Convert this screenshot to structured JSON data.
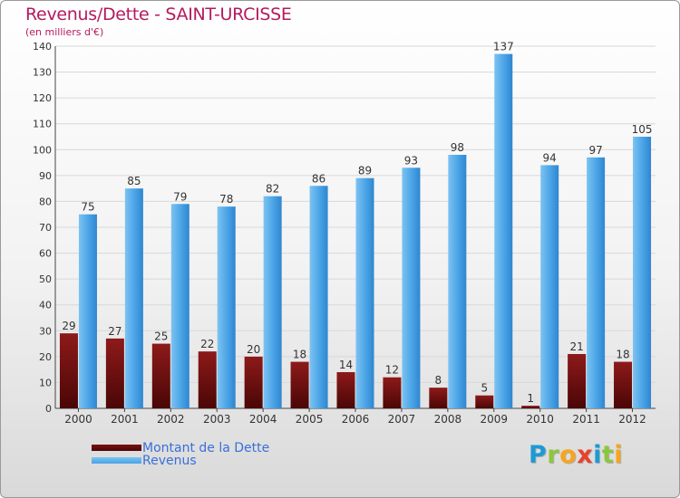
{
  "header": {
    "title": "Revenus/Dette - SAINT-URCISSE",
    "subtitle": "(en milliers d'€)"
  },
  "legend": {
    "items": [
      {
        "label": "Montant de la Dette",
        "color": "#7a0f0f"
      },
      {
        "label": "Revenus",
        "color": "#4aa3e6"
      }
    ]
  },
  "logo": {
    "letters": [
      "P",
      "r",
      "o",
      "x",
      "i",
      "t",
      "i"
    ],
    "colors": [
      "#1c9ad6",
      "#8cc63f",
      "#f7a51c",
      "#e8412c",
      "#1c9ad6",
      "#8cc63f",
      "#f7a51c"
    ]
  },
  "colors": {
    "title": "#b5195e",
    "debt": "#7a0f0f",
    "revenue": "#4aa3e6",
    "grid": "#d8d8d8"
  },
  "chart_data": {
    "type": "bar",
    "title": "Revenus/Dette - SAINT-URCISSE",
    "ylabel": "(en milliers d'€)",
    "xlabel": "",
    "ylim": [
      0,
      140
    ],
    "yticks": [
      0,
      10,
      20,
      30,
      40,
      50,
      60,
      70,
      80,
      90,
      100,
      110,
      120,
      130,
      140
    ],
    "grid": true,
    "legend_position": "bottom-left",
    "categories": [
      "2000",
      "2001",
      "2002",
      "2003",
      "2004",
      "2005",
      "2006",
      "2007",
      "2008",
      "2009",
      "2010",
      "2011",
      "2012"
    ],
    "series": [
      {
        "name": "Montant de la Dette",
        "values": [
          29,
          27,
          25,
          22,
          20,
          18,
          14,
          12,
          8,
          5,
          1,
          21,
          18
        ]
      },
      {
        "name": "Revenus",
        "values": [
          75,
          85,
          79,
          78,
          82,
          86,
          89,
          93,
          98,
          137,
          94,
          97,
          105
        ]
      }
    ]
  }
}
